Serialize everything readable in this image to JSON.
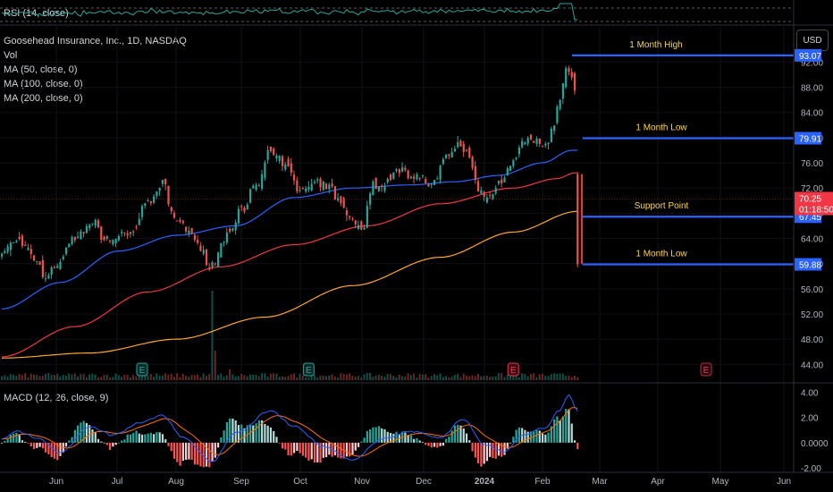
{
  "symbol": "Goosehead Insurance, Inc., 1D, NASDAQ",
  "currency_button": "USD",
  "indicators": {
    "rsi": "RSI (14, close)",
    "vol": "Vol",
    "ma50": "MA (50, close, 0)",
    "ma100": "MA (100, close, 0)",
    "ma200": "MA (200, close, 0)",
    "macd": "MACD (12, 26, close, 9)"
  },
  "colors": {
    "up": "#26a69a",
    "down": "#ef5350",
    "ma50": "#2962ff",
    "ma100": "#f23645",
    "ma200": "#ffa726",
    "level_line": "#2962ff",
    "level_text": "#ffd54f",
    "macd_line": "#2962ff",
    "signal_line": "#ff6d00",
    "rsi_line": "#26a69a",
    "current_price_bg": "#f23645"
  },
  "annotations": [
    {
      "label": "1 Month High",
      "price": 93.07
    },
    {
      "label": "1 Month Low",
      "price": 79.91
    },
    {
      "label": "Support Point",
      "price": 67.45
    },
    {
      "label": "1 Month Low",
      "price": 59.88
    }
  ],
  "current_price": {
    "price": "70.25",
    "countdown": "01:18:50"
  },
  "earnings_marker": "E",
  "chart_data": {
    "type": "candlestick",
    "price_axis": {
      "ticks": [
        44.0,
        48.0,
        52.0,
        56.0,
        60.0,
        64.0,
        68.0,
        72.0,
        76.0,
        80.0,
        84.0,
        88.0,
        92.0
      ],
      "range": [
        41.2,
        97.6
      ]
    },
    "macd_axis": {
      "ticks": [
        "4.00",
        "2.00",
        "0.0000",
        "-2.00"
      ],
      "range": [
        -2.35,
        4.6
      ]
    },
    "x_axis": {
      "labels": [
        "Jun",
        "Jul",
        "Aug",
        "Sep",
        "Oct",
        "Nov",
        "Dec",
        "2024",
        "Feb",
        "Mar",
        "Apr",
        "May",
        "Jun"
      ]
    },
    "close_anchors": [
      {
        "i": 0,
        "p": 61.8
      },
      {
        "i": 5,
        "p": 63.6
      },
      {
        "i": 10,
        "p": 61.5
      },
      {
        "i": 15,
        "p": 58.0
      },
      {
        "i": 19,
        "p": 60.0
      },
      {
        "i": 25,
        "p": 64.0
      },
      {
        "i": 30,
        "p": 66.4
      },
      {
        "i": 37,
        "p": 63.8
      },
      {
        "i": 44,
        "p": 65.0
      },
      {
        "i": 51,
        "p": 70.0
      },
      {
        "i": 55,
        "p": 72.6
      },
      {
        "i": 59,
        "p": 67.2
      },
      {
        "i": 64,
        "p": 65.5
      },
      {
        "i": 68,
        "p": 61.8
      },
      {
        "i": 72,
        "p": 60.0
      },
      {
        "i": 77,
        "p": 64.5
      },
      {
        "i": 82,
        "p": 69.0
      },
      {
        "i": 87,
        "p": 72.0
      },
      {
        "i": 92,
        "p": 77.5
      },
      {
        "i": 97,
        "p": 75.5
      },
      {
        "i": 102,
        "p": 71.5
      },
      {
        "i": 107,
        "p": 73.2
      },
      {
        "i": 112,
        "p": 72.0
      },
      {
        "i": 115,
        "p": 70.5
      },
      {
        "i": 119,
        "p": 67.0
      },
      {
        "i": 123,
        "p": 65.0
      },
      {
        "i": 127,
        "p": 72.5
      },
      {
        "i": 132,
        "p": 73.0
      },
      {
        "i": 137,
        "p": 75.0
      },
      {
        "i": 142,
        "p": 74.0
      },
      {
        "i": 147,
        "p": 72.5
      },
      {
        "i": 152,
        "p": 76.5
      },
      {
        "i": 157,
        "p": 79.0
      },
      {
        "i": 160,
        "p": 76.5
      },
      {
        "i": 163,
        "p": 71.8
      },
      {
        "i": 166,
        "p": 70.2
      },
      {
        "i": 170,
        "p": 72.8
      },
      {
        "i": 174,
        "p": 76.0
      },
      {
        "i": 178,
        "p": 79.0
      },
      {
        "i": 182,
        "p": 79.5
      },
      {
        "i": 186,
        "p": 78.5
      },
      {
        "i": 189,
        "p": 82.0
      },
      {
        "i": 191,
        "p": 86.0
      },
      {
        "i": 193,
        "p": 91.0
      },
      {
        "i": 195,
        "p": 89.0
      },
      {
        "i": 197,
        "p": 87.0
      }
    ],
    "ma50_anchors": [
      {
        "i": 0,
        "p": 52.8
      },
      {
        "i": 20,
        "p": 57.0
      },
      {
        "i": 40,
        "p": 62.0
      },
      {
        "i": 60,
        "p": 64.5
      },
      {
        "i": 80,
        "p": 66.0
      },
      {
        "i": 100,
        "p": 70.5
      },
      {
        "i": 120,
        "p": 72.0
      },
      {
        "i": 140,
        "p": 72.5
      },
      {
        "i": 155,
        "p": 73.0
      },
      {
        "i": 170,
        "p": 74.0
      },
      {
        "i": 185,
        "p": 76.0
      },
      {
        "i": 195,
        "p": 78.0
      }
    ],
    "ma100_anchors": [
      {
        "i": 0,
        "p": 45.2
      },
      {
        "i": 25,
        "p": 50.0
      },
      {
        "i": 50,
        "p": 55.5
      },
      {
        "i": 75,
        "p": 59.5
      },
      {
        "i": 100,
        "p": 63.0
      },
      {
        "i": 125,
        "p": 66.0
      },
      {
        "i": 150,
        "p": 69.5
      },
      {
        "i": 175,
        "p": 72.0
      },
      {
        "i": 190,
        "p": 73.5
      },
      {
        "i": 196,
        "p": 74.4
      }
    ],
    "ma200_anchors": [
      {
        "i": 0,
        "p": 45.0
      },
      {
        "i": 30,
        "p": 45.8
      },
      {
        "i": 60,
        "p": 48.0
      },
      {
        "i": 90,
        "p": 51.5
      },
      {
        "i": 120,
        "p": 56.5
      },
      {
        "i": 150,
        "p": 61.0
      },
      {
        "i": 175,
        "p": 65.0
      },
      {
        "i": 197,
        "p": 68.3
      }
    ],
    "macd_anchors": [
      {
        "i": 0,
        "p": 0.3
      },
      {
        "i": 5,
        "p": 0.9
      },
      {
        "i": 12,
        "p": 0.4
      },
      {
        "i": 20,
        "p": -0.8
      },
      {
        "i": 30,
        "p": 1.3
      },
      {
        "i": 38,
        "p": 0.6
      },
      {
        "i": 48,
        "p": 1.6
      },
      {
        "i": 55,
        "p": 2.2
      },
      {
        "i": 62,
        "p": 0.4
      },
      {
        "i": 72,
        "p": -1.5
      },
      {
        "i": 80,
        "p": 0.8
      },
      {
        "i": 92,
        "p": 2.5
      },
      {
        "i": 100,
        "p": 1.3
      },
      {
        "i": 110,
        "p": -0.3
      },
      {
        "i": 120,
        "p": -1.4
      },
      {
        "i": 130,
        "p": 0.3
      },
      {
        "i": 140,
        "p": 0.9
      },
      {
        "i": 150,
        "p": 0.4
      },
      {
        "i": 158,
        "p": 1.9
      },
      {
        "i": 165,
        "p": -0.2
      },
      {
        "i": 172,
        "p": -0.7
      },
      {
        "i": 178,
        "p": 0.6
      },
      {
        "i": 186,
        "p": 1.2
      },
      {
        "i": 191,
        "p": 2.6
      },
      {
        "i": 194,
        "p": 3.8
      },
      {
        "i": 197,
        "p": 2.5
      }
    ],
    "volume": {
      "events": [
        {
          "i": 72,
          "v": 1.0
        },
        {
          "i": 73,
          "v": 0.33
        },
        {
          "i": 78,
          "v": 0.12
        }
      ]
    },
    "earnings_indices": [
      48,
      105,
      175
    ],
    "upcoming_earnings_month_index": 11
  }
}
